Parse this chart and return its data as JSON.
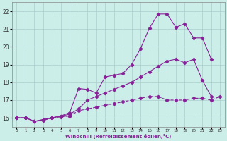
{
  "bg_color": "#cceee8",
  "grid_color": "#aacccc",
  "line_color": "#882299",
  "xlim": [
    -0.5,
    23.5
  ],
  "ylim": [
    15.5,
    22.5
  ],
  "xticks": [
    0,
    1,
    2,
    3,
    4,
    5,
    6,
    7,
    8,
    9,
    10,
    11,
    12,
    13,
    14,
    15,
    16,
    17,
    18,
    19,
    20,
    21,
    22,
    23
  ],
  "yticks": [
    16,
    17,
    18,
    19,
    20,
    21,
    22
  ],
  "xlabel": "Windchill (Refroidissement éolien,°C)",
  "line1_x": [
    0,
    1,
    2,
    3,
    4,
    5,
    6,
    7,
    8,
    9,
    10,
    11,
    12,
    13,
    14,
    15,
    16,
    17,
    18,
    19,
    20,
    21,
    22
  ],
  "line1_y": [
    16.0,
    16.0,
    15.8,
    15.9,
    16.0,
    16.1,
    16.2,
    16.5,
    17.0,
    17.2,
    17.4,
    17.6,
    17.8,
    18.0,
    18.3,
    18.6,
    18.9,
    19.2,
    19.3,
    19.1,
    19.3,
    18.1,
    17.2
  ],
  "line2_x": [
    0,
    1,
    2,
    3,
    4,
    5,
    6,
    7,
    8,
    9,
    10,
    11,
    12,
    13,
    14,
    15,
    16,
    17,
    18,
    19,
    20,
    21,
    22
  ],
  "line2_y": [
    16.0,
    16.0,
    15.8,
    15.9,
    16.0,
    16.1,
    16.3,
    17.65,
    17.6,
    17.4,
    18.3,
    18.4,
    18.5,
    19.0,
    19.9,
    21.05,
    21.85,
    21.85,
    21.1,
    21.3,
    20.5,
    20.5,
    19.3
  ],
  "line3_x": [
    0,
    1,
    2,
    3,
    4,
    5,
    6,
    7,
    8,
    9,
    10,
    11,
    12,
    13,
    14,
    15,
    16,
    17,
    18,
    19,
    20,
    21,
    22,
    23
  ],
  "line3_y": [
    16.0,
    16.0,
    15.8,
    15.85,
    16.0,
    16.05,
    16.1,
    16.4,
    16.5,
    16.6,
    16.7,
    16.8,
    16.9,
    17.0,
    17.1,
    17.2,
    17.2,
    17.0,
    17.0,
    17.0,
    17.1,
    17.1,
    17.0,
    17.2
  ]
}
